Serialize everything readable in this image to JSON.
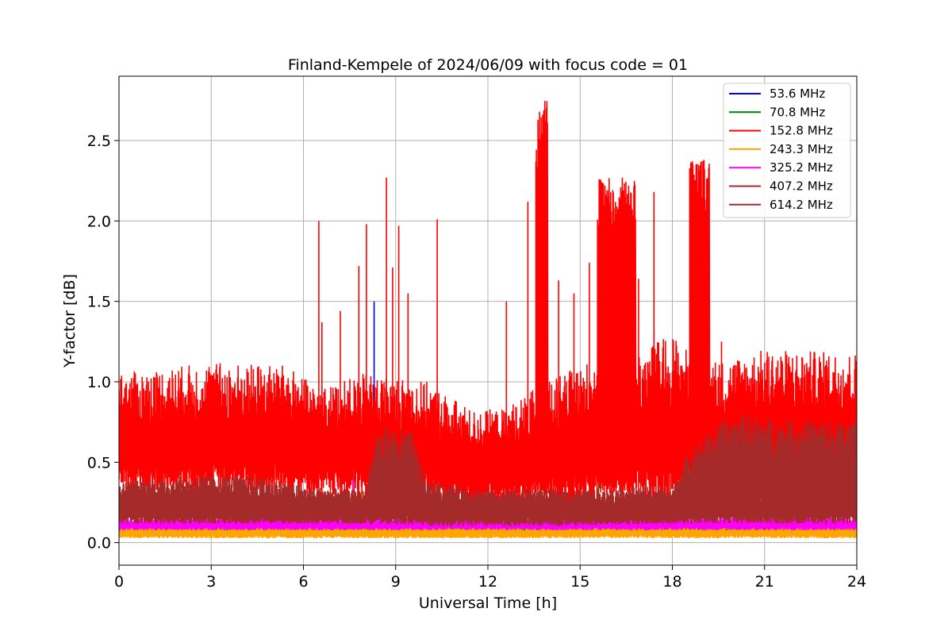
{
  "chart_data": {
    "type": "line",
    "title": "Finland-Kempele of 2024/06/09 with focus code = 01",
    "xlabel": "Universal Time [h]",
    "ylabel": "Y-factor [dB]",
    "xlim": [
      0,
      24
    ],
    "ylim": [
      -0.14,
      2.9
    ],
    "x_ticks": [
      0,
      3,
      6,
      9,
      12,
      15,
      18,
      21,
      24
    ],
    "x_tick_labels": [
      "0",
      "3",
      "6",
      "9",
      "12",
      "15",
      "18",
      "21",
      "24"
    ],
    "y_ticks": [
      0.0,
      0.5,
      1.0,
      1.5,
      2.0,
      2.5
    ],
    "y_tick_labels": [
      "0.0",
      "0.5",
      "1.0",
      "1.5",
      "2.0",
      "2.5"
    ],
    "grid": true,
    "legend_position": "top-right",
    "series": [
      {
        "name": " 53.6 MHz",
        "color": "#0000ff",
        "draw_order": 1,
        "base_min": [
          [
            0,
            0.06
          ],
          [
            24,
            0.06
          ]
        ],
        "base_max": [
          [
            0,
            0.12
          ],
          [
            24,
            0.12
          ]
        ],
        "spikes": [
          [
            8.3,
            1.5
          ],
          [
            16.6,
            1.57
          ],
          [
            17.4,
            1.32
          ],
          [
            18.8,
            0.5
          ],
          [
            19.0,
            0.55
          ]
        ]
      },
      {
        "name": " 70.8 MHz",
        "color": "#008000",
        "draw_order": 2,
        "base_min": [
          [
            0,
            0.05
          ],
          [
            24,
            0.05
          ]
        ],
        "base_max": [
          [
            0,
            0.12
          ],
          [
            24,
            0.12
          ]
        ],
        "spikes": [
          [
            13.7,
            0.68
          ],
          [
            15.6,
            0.57
          ]
        ]
      },
      {
        "name": "152.8 MHz",
        "color": "#ff0000",
        "draw_order": 6,
        "base_min": [
          [
            0,
            0.3
          ],
          [
            6,
            0.3
          ],
          [
            8,
            0.28
          ],
          [
            12,
            0.22
          ],
          [
            13.5,
            0.25
          ],
          [
            16,
            0.22
          ],
          [
            19,
            0.3
          ],
          [
            24,
            0.35
          ]
        ],
        "base_max": [
          [
            0,
            1.05
          ],
          [
            3,
            1.12
          ],
          [
            5.5,
            1.1
          ],
          [
            6.5,
            0.95
          ],
          [
            8,
            1.05
          ],
          [
            10,
            1.0
          ],
          [
            11.5,
            0.82
          ],
          [
            12.5,
            0.83
          ],
          [
            13.5,
            0.95
          ],
          [
            14.5,
            1.05
          ],
          [
            15.5,
            1.15
          ],
          [
            17,
            1.2
          ],
          [
            18,
            1.3
          ],
          [
            19,
            1.1
          ],
          [
            21,
            1.2
          ],
          [
            24,
            1.18
          ]
        ],
        "spikes": [
          [
            6.5,
            2.0
          ],
          [
            6.6,
            1.37
          ],
          [
            7.2,
            1.44
          ],
          [
            7.8,
            1.72
          ],
          [
            8.05,
            1.98
          ],
          [
            8.7,
            2.27
          ],
          [
            8.9,
            1.71
          ],
          [
            9.1,
            1.97
          ],
          [
            9.4,
            1.55
          ],
          [
            10.35,
            2.01
          ],
          [
            12.6,
            1.5
          ],
          [
            13.3,
            2.12
          ],
          [
            14.3,
            1.63
          ],
          [
            14.8,
            1.55
          ],
          [
            15.3,
            1.74
          ],
          [
            16.9,
            1.64
          ],
          [
            17.4,
            2.18
          ],
          [
            19.4,
            1.12
          ],
          [
            19.6,
            1.25
          ]
        ],
        "bursts": [
          {
            "x": [
              13.55,
              13.95
            ],
            "min": 0.3,
            "max": 2.76
          },
          {
            "x": [
              15.55,
              16.8
            ],
            "min": 0.3,
            "max": 2.27
          },
          {
            "x": [
              18.55,
              19.2
            ],
            "min": 0.28,
            "max": 2.38
          }
        ]
      },
      {
        "name": "243.3 MHz",
        "color": "#ffa500",
        "draw_order": 3,
        "base_min": [
          [
            0,
            0.03
          ],
          [
            24,
            0.03
          ]
        ],
        "base_max": [
          [
            0,
            0.1
          ],
          [
            24,
            0.1
          ]
        ],
        "spikes": [
          [
            8.5,
            0.69
          ],
          [
            7.9,
            0.45
          ]
        ]
      },
      {
        "name": "325.2 MHz",
        "color": "#ff00ff",
        "draw_order": 4,
        "base_min": [
          [
            0,
            0.08
          ],
          [
            24,
            0.08
          ]
        ],
        "base_max": [
          [
            0,
            0.16
          ],
          [
            24,
            0.16
          ]
        ],
        "spikes": [
          [
            7.4,
            0.55
          ],
          [
            7.6,
            0.45
          ]
        ]
      },
      {
        "name": "407.2 MHz",
        "color": "#a52a2a",
        "draw_order": 5,
        "base_min": [
          [
            0,
            0.12
          ],
          [
            24,
            0.12
          ]
        ],
        "base_max": [
          [
            0,
            0.32
          ],
          [
            24,
            0.32
          ]
        ],
        "spikes": []
      },
      {
        "name": "614.2 MHz",
        "color": "#a52a2a",
        "draw_order": 7,
        "base_min": [
          [
            0,
            0.15
          ],
          [
            6,
            0.12
          ],
          [
            12,
            0.1
          ],
          [
            18,
            0.12
          ],
          [
            19,
            0.15
          ],
          [
            24,
            0.15
          ]
        ],
        "base_max": [
          [
            0,
            0.38
          ],
          [
            3,
            0.42
          ],
          [
            5,
            0.4
          ],
          [
            6,
            0.35
          ],
          [
            8,
            0.32
          ],
          [
            8.4,
            0.72
          ],
          [
            9.5,
            0.7
          ],
          [
            10,
            0.38
          ],
          [
            12,
            0.33
          ],
          [
            15,
            0.33
          ],
          [
            18,
            0.35
          ],
          [
            18.6,
            0.6
          ],
          [
            20,
            0.8
          ],
          [
            22,
            0.77
          ],
          [
            24,
            0.75
          ]
        ],
        "spikes": []
      }
    ]
  }
}
